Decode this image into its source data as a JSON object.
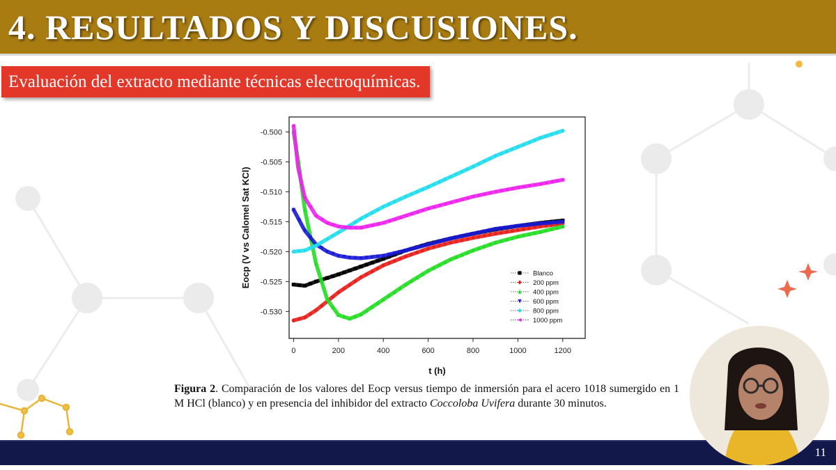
{
  "slide": {
    "title": "4. RESULTADOS Y DISCUSIONES.",
    "subtitle": "Evaluación del extracto mediante técnicas electroquímicas.",
    "page_number": "11"
  },
  "caption": {
    "label": "Figura 2",
    "text_1": ". Comparación de los valores del Eocp versus tiempo de inmersión para el acero 1018 sumergido en 1 M HCl (blanco) y en presencia del inhibidor del extracto ",
    "species": "Coccoloba Uvifera",
    "text_2": " durante 30 minutos."
  },
  "colors": {
    "title_bar": "#a97c12",
    "subtitle_box": "#e3372a",
    "footer_bar": "#12184a"
  },
  "chart_data": {
    "type": "scatter",
    "xlabel": "t (h)",
    "ylabel": "Eocp (V vs Calomel Sat KCl)",
    "xlim": [
      -20,
      1300
    ],
    "ylim": [
      -0.5345,
      -0.4975
    ],
    "xticks": [
      0,
      200,
      400,
      600,
      800,
      1000,
      1200
    ],
    "yticks": [
      -0.5,
      -0.505,
      -0.51,
      -0.515,
      -0.52,
      -0.525,
      -0.53
    ],
    "legend_position": "bottom-right",
    "series": [
      {
        "name": "Blanco",
        "color": "#000000",
        "marker": "square",
        "x": [
          0,
          50,
          100,
          200,
          300,
          400,
          500,
          600,
          700,
          800,
          900,
          1000,
          1100,
          1200
        ],
        "y": [
          -0.5255,
          -0.5257,
          -0.525,
          -0.5238,
          -0.5225,
          -0.5212,
          -0.5198,
          -0.5187,
          -0.5178,
          -0.517,
          -0.5163,
          -0.5157,
          -0.5152,
          -0.5148
        ]
      },
      {
        "name": "200 ppm",
        "color": "#e8201c",
        "marker": "diamond",
        "x": [
          0,
          50,
          100,
          150,
          200,
          300,
          400,
          500,
          600,
          700,
          800,
          900,
          1000,
          1100,
          1200
        ],
        "y": [
          -0.5315,
          -0.531,
          -0.5298,
          -0.5283,
          -0.5268,
          -0.5243,
          -0.5223,
          -0.5208,
          -0.5195,
          -0.5185,
          -0.5177,
          -0.517,
          -0.5164,
          -0.5158,
          -0.5153
        ]
      },
      {
        "name": "400 ppm",
        "color": "#22dd22",
        "marker": "triangle-up",
        "x": [
          0,
          25,
          50,
          100,
          150,
          200,
          250,
          300,
          400,
          500,
          600,
          700,
          800,
          900,
          1000,
          1100,
          1200
        ],
        "y": [
          -0.5,
          -0.506,
          -0.513,
          -0.522,
          -0.528,
          -0.5306,
          -0.5312,
          -0.5305,
          -0.528,
          -0.5255,
          -0.5232,
          -0.5213,
          -0.5198,
          -0.5185,
          -0.5175,
          -0.5167,
          -0.5158
        ]
      },
      {
        "name": "600 ppm",
        "color": "#1a1ad6",
        "marker": "triangle-down",
        "x": [
          0,
          50,
          100,
          150,
          200,
          250,
          300,
          400,
          500,
          600,
          700,
          800,
          900,
          1000,
          1100,
          1200
        ],
        "y": [
          -0.513,
          -0.5165,
          -0.5188,
          -0.52,
          -0.5207,
          -0.521,
          -0.5211,
          -0.5207,
          -0.5198,
          -0.5188,
          -0.5178,
          -0.517,
          -0.5162,
          -0.5157,
          -0.5153,
          -0.515
        ]
      },
      {
        "name": "800 ppm",
        "color": "#22ddee",
        "marker": "diamond",
        "x": [
          0,
          50,
          100,
          200,
          300,
          400,
          500,
          600,
          700,
          800,
          900,
          1000,
          1100,
          1200
        ],
        "y": [
          -0.52,
          -0.5198,
          -0.519,
          -0.5168,
          -0.5145,
          -0.5125,
          -0.5108,
          -0.5092,
          -0.5075,
          -0.5058,
          -0.504,
          -0.5025,
          -0.501,
          -0.4998
        ]
      },
      {
        "name": "1000 ppm",
        "color": "#ee22ee",
        "marker": "triangle-left",
        "x": [
          0,
          20,
          50,
          100,
          150,
          200,
          250,
          300,
          400,
          500,
          600,
          700,
          800,
          900,
          1000,
          1100,
          1200
        ],
        "y": [
          -0.499,
          -0.506,
          -0.511,
          -0.514,
          -0.5152,
          -0.5158,
          -0.516,
          -0.516,
          -0.5152,
          -0.514,
          -0.5128,
          -0.5118,
          -0.5108,
          -0.51,
          -0.5093,
          -0.5087,
          -0.508
        ]
      }
    ]
  }
}
